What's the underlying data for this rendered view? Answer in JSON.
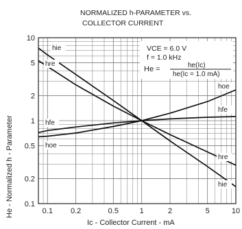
{
  "chart_data": {
    "type": "line",
    "title": "NORMALIZED h-PARAMETER vs.",
    "subtitle": "COLLECTOR CURRENT",
    "xlabel": "Ic - Collector Current - mA",
    "ylabel": "He - Normalized h - Parameter",
    "x_scale": "log",
    "y_scale": "log",
    "xlim": [
      0.08,
      10
    ],
    "ylim": [
      0.1,
      10
    ],
    "grid": true,
    "x_ticks": [
      0.1,
      0.2,
      0.5,
      1,
      2,
      5,
      10
    ],
    "x_tick_labels": [
      "0.1",
      "0.2",
      "0.5",
      "1",
      "2",
      "5",
      "10"
    ],
    "y_ticks": [
      0.1,
      0.2,
      0.5,
      1,
      2,
      5,
      10
    ],
    "y_tick_labels": [
      "0.1",
      "0.2",
      "0.5",
      "1",
      "2",
      "5",
      "10"
    ],
    "annotations": {
      "vce": "VCE = 6.0 V",
      "freq": "f = 1.0 kHz",
      "eq_lhs": "He =",
      "eq_num": "he(Ic)",
      "eq_den": "he(Ic = 1.0 mA)"
    },
    "series": [
      {
        "name": "hie",
        "x": [
          0.08,
          0.1,
          0.2,
          0.5,
          1,
          2,
          5,
          10
        ],
        "values": [
          7.5,
          6.2,
          3.6,
          1.75,
          1.0,
          0.57,
          0.28,
          0.16
        ]
      },
      {
        "name": "hre",
        "x": [
          0.08,
          0.1,
          0.2,
          0.5,
          1,
          2,
          5,
          10
        ],
        "values": [
          5.3,
          4.5,
          2.7,
          1.5,
          1.0,
          0.68,
          0.42,
          0.29
        ]
      },
      {
        "name": "hfe",
        "x": [
          0.08,
          0.1,
          0.2,
          0.5,
          1,
          2,
          5,
          10
        ],
        "values": [
          0.72,
          0.76,
          0.84,
          0.94,
          1.0,
          1.05,
          1.1,
          1.12
        ]
      },
      {
        "name": "hoe",
        "x": [
          0.08,
          0.1,
          0.2,
          0.5,
          1,
          2,
          5,
          10
        ],
        "values": [
          0.64,
          0.65,
          0.71,
          0.85,
          1.0,
          1.23,
          1.7,
          2.35
        ]
      }
    ],
    "series_labels": [
      {
        "series": "hie",
        "text": "hie"
      },
      {
        "series": "hre",
        "text": "hre"
      },
      {
        "series": "hfe",
        "text": "hfe"
      },
      {
        "series": "hoe",
        "text": "hoe"
      },
      {
        "series": "hoe",
        "text": "hoe"
      },
      {
        "series": "hfe",
        "text": "hfe"
      },
      {
        "series": "hre",
        "text": "hre"
      },
      {
        "series": "hie",
        "text": "hie"
      }
    ]
  }
}
